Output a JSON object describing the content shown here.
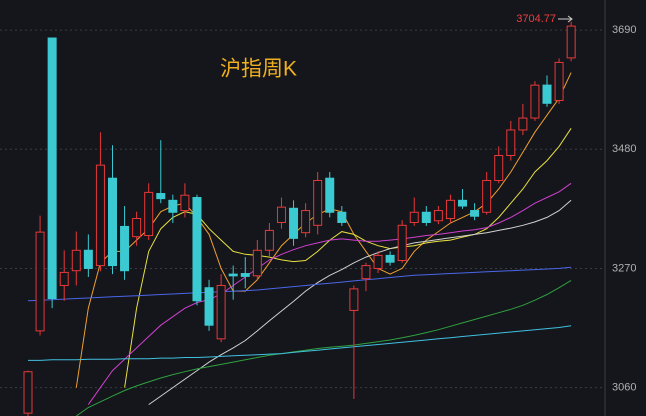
{
  "chart_data": {
    "type": "candlestick",
    "title": "沪指周K",
    "ylim": [
      3010,
      3743
    ],
    "yticks": [
      3060,
      3270,
      3480,
      3690
    ],
    "grid": true,
    "up_color": "#e83838",
    "down_color": "#3ccad2",
    "open": [
      3015,
      3160,
      3676,
      3240,
      3266,
      3302,
      3275,
      3429,
      3344,
      3326,
      3328,
      3402,
      3390,
      3372,
      3395,
      3236,
      3146,
      3260,
      3261,
      3257,
      3302,
      3351,
      3376,
      3333,
      3346,
      3429,
      3369,
      3196,
      3252,
      3270,
      3293,
      3284,
      3351,
      3369,
      3354,
      3358,
      3390,
      3372,
      3369,
      3425,
      3469,
      3514,
      3535,
      3593,
      3566,
      3641
    ],
    "high": [
      3090,
      3363,
      3676,
      3302,
      3335,
      3330,
      3510,
      3487,
      3380,
      3370,
      3420,
      3496,
      3400,
      3420,
      3400,
      3250,
      3260,
      3275,
      3290,
      3320,
      3350,
      3395,
      3390,
      3385,
      3440,
      3440,
      3380,
      3240,
      3280,
      3300,
      3300,
      3355,
      3395,
      3380,
      3380,
      3400,
      3410,
      3385,
      3440,
      3485,
      3530,
      3560,
      3600,
      3610,
      3640,
      3704.77
    ],
    "low": [
      3010,
      3152,
      3200,
      3213,
      3240,
      3255,
      3265,
      3260,
      3250,
      3310,
      3320,
      3385,
      3350,
      3360,
      3205,
      3160,
      3140,
      3215,
      3235,
      3250,
      3290,
      3340,
      3310,
      3325,
      3330,
      3360,
      3345,
      3040,
      3230,
      3262,
      3275,
      3280,
      3345,
      3345,
      3348,
      3350,
      3375,
      3355,
      3365,
      3420,
      3460,
      3505,
      3530,
      3555,
      3560,
      3635
    ],
    "close": [
      3088,
      3334,
      3217,
      3263,
      3302,
      3270,
      3452,
      3275,
      3266,
      3358,
      3404,
      3393,
      3369,
      3399,
      3213,
      3170,
      3240,
      3257,
      3256,
      3302,
      3337,
      3378,
      3323,
      3372,
      3425,
      3369,
      3351,
      3234,
      3275,
      3293,
      3281,
      3346,
      3369,
      3351,
      3372,
      3390,
      3380,
      3362,
      3425,
      3469,
      3514,
      3535,
      3593,
      3561,
      3633,
      3697
    ],
    "lines": [
      {
        "color": "#f0a030",
        "values": [
          null,
          null,
          null,
          null,
          3060,
          3200,
          3280,
          3300,
          3300,
          3320,
          3340,
          3370,
          3380,
          3385,
          3360,
          3330,
          3270,
          3230,
          3230,
          3250,
          3280,
          3310,
          3330,
          3350,
          3365,
          3375,
          3370,
          3330,
          3300,
          3270,
          3260,
          3270,
          3300,
          3320,
          3335,
          3350,
          3360,
          3370,
          3385,
          3410,
          3440,
          3475,
          3510,
          3540,
          3570,
          3615
        ]
      },
      {
        "color": "#e8e040",
        "values": [
          null,
          null,
          null,
          null,
          null,
          null,
          null,
          null,
          3060,
          3200,
          3300,
          3340,
          3360,
          3370,
          3365,
          3340,
          3320,
          3300,
          3295,
          3293,
          3290,
          3285,
          3282,
          3284,
          3300,
          3320,
          3335,
          3330,
          3318,
          3310,
          3305,
          3308,
          3310,
          3315,
          3318,
          3320,
          3325,
          3330,
          3340,
          3360,
          3385,
          3410,
          3440,
          3460,
          3485,
          3517
        ]
      },
      {
        "color": "#d040d0",
        "values": [
          null,
          null,
          null,
          null,
          null,
          3030,
          3060,
          3090,
          3110,
          3130,
          3150,
          3170,
          3185,
          3200,
          3210,
          3215,
          3225,
          3240,
          3255,
          3270,
          3285,
          3295,
          3303,
          3310,
          3315,
          3320,
          3322,
          3320,
          3318,
          3318,
          3320,
          3322,
          3325,
          3328,
          3330,
          3333,
          3336,
          3338,
          3342,
          3350,
          3360,
          3372,
          3385,
          3395,
          3405,
          3420
        ]
      },
      {
        "color": "#d0d0d0",
        "values": [
          null,
          null,
          null,
          null,
          null,
          null,
          null,
          null,
          null,
          null,
          3030,
          3045,
          3060,
          3075,
          3090,
          3105,
          3118,
          3130,
          3143,
          3160,
          3178,
          3195,
          3212,
          3230,
          3245,
          3258,
          3268,
          3280,
          3290,
          3298,
          3305,
          3310,
          3315,
          3318,
          3321,
          3324,
          3327,
          3330,
          3333,
          3337,
          3341,
          3346,
          3352,
          3360,
          3372,
          3390
        ]
      },
      {
        "color": "#4a66e8",
        "values": [
          3213,
          3214,
          3215,
          3216,
          3217,
          3218,
          3219,
          3220,
          3221,
          3222,
          3223,
          3224,
          3225,
          3226,
          3227,
          3228,
          3229,
          3230,
          3231,
          3232,
          3234,
          3236,
          3238,
          3240,
          3242,
          3244,
          3246,
          3248,
          3250,
          3252,
          3254,
          3256,
          3258,
          3259,
          3260,
          3261,
          3262,
          3263,
          3264,
          3265,
          3266,
          3267,
          3268,
          3269,
          3270,
          3272
        ]
      },
      {
        "color": "#30a040",
        "values": [
          null,
          null,
          null,
          null,
          3010,
          3025,
          3035,
          3045,
          3055,
          3063,
          3070,
          3077,
          3083,
          3088,
          3093,
          3097,
          3101,
          3105,
          3109,
          3113,
          3117,
          3120,
          3123,
          3126,
          3129,
          3131,
          3133,
          3135,
          3138,
          3141,
          3144,
          3148,
          3152,
          3157,
          3162,
          3168,
          3174,
          3180,
          3186,
          3192,
          3198,
          3205,
          3214,
          3224,
          3236,
          3249
        ]
      },
      {
        "color": "#40c0e0",
        "values": [
          3108,
          3108,
          3109,
          3109,
          3109,
          3110,
          3110,
          3110,
          3111,
          3111,
          3111,
          3112,
          3112,
          3113,
          3113,
          3114,
          3115,
          3116,
          3117,
          3118,
          3119,
          3120,
          3122,
          3124,
          3126,
          3128,
          3130,
          3132,
          3134,
          3136,
          3138,
          3140,
          3142,
          3144,
          3146,
          3148,
          3150,
          3152,
          3154,
          3156,
          3158,
          3160,
          3162,
          3164,
          3166,
          3169
        ]
      }
    ]
  }
}
